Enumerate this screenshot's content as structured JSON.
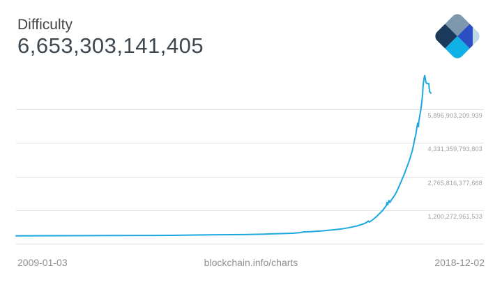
{
  "header": {
    "title": "Difficulty",
    "value": "6,653,303,141,405"
  },
  "footer": {
    "start_date": "2009-01-03",
    "source_link": "blockchain.info/charts",
    "end_date": "2018-12-02"
  },
  "logo": {
    "name": "blockchain-logo",
    "colors": {
      "north_gray": "#7d98ac",
      "west_navy": "#1c3a5c",
      "east_royal": "#2b4fc3",
      "east_tip_light": "#bcd9e8",
      "south_cyan": "#0fb1e7"
    }
  },
  "colors": {
    "line": "#1ba7e0",
    "grid": "#e1e1e1",
    "axis": "#dcdcdc",
    "tick_label": "#9e9e9e",
    "footer_text": "#8f8f8f",
    "title_text": "#424242",
    "value_text": "#3f474e",
    "background": "#ffffff"
  },
  "chart_data": {
    "type": "line",
    "title": "Difficulty",
    "subtitle_current_value": 6653303141405,
    "xlabel": "",
    "ylabel": "Difficulty",
    "x_range": [
      "2009-01-03",
      "2018-12-02"
    ],
    "y_axis_side": "right",
    "grid": true,
    "legend": false,
    "y_ticks": [
      {
        "label": "5,896,903,209,939",
        "value_trillions": 5.896903209939
      },
      {
        "label": "4,331,359,793,803",
        "value_trillions": 4.331359793803
      },
      {
        "label": "2,765,816,377,668",
        "value_trillions": 2.765816377668
      },
      {
        "label": "1,200,272,961,533",
        "value_trillions": 1.200272961533
      }
    ],
    "series": [
      {
        "name": "Difficulty",
        "unit": "trillions",
        "points": [
          [
            0.0,
            0.001
          ],
          [
            0.107,
            0.005
          ],
          [
            0.213,
            0.012
          ],
          [
            0.35,
            0.02
          ],
          [
            0.466,
            0.045
          ],
          [
            0.55,
            0.06
          ],
          [
            0.6,
            0.08
          ],
          [
            0.667,
            0.12
          ],
          [
            0.684,
            0.15
          ],
          [
            0.694,
            0.185
          ],
          [
            0.709,
            0.19
          ],
          [
            0.734,
            0.225
          ],
          [
            0.76,
            0.27
          ],
          [
            0.785,
            0.32
          ],
          [
            0.805,
            0.39
          ],
          [
            0.822,
            0.46
          ],
          [
            0.835,
            0.54
          ],
          [
            0.845,
            0.62
          ],
          [
            0.849,
            0.69
          ],
          [
            0.852,
            0.64
          ],
          [
            0.861,
            0.77
          ],
          [
            0.869,
            0.9
          ],
          [
            0.877,
            1.05
          ],
          [
            0.884,
            1.19
          ],
          [
            0.889,
            1.32
          ],
          [
            0.893,
            1.42
          ],
          [
            0.894,
            1.55
          ],
          [
            0.896,
            1.45
          ],
          [
            0.899,
            1.65
          ],
          [
            0.901,
            1.55
          ],
          [
            0.906,
            1.71
          ],
          [
            0.911,
            1.84
          ],
          [
            0.916,
            2.0
          ],
          [
            0.921,
            2.2
          ],
          [
            0.926,
            2.43
          ],
          [
            0.931,
            2.65
          ],
          [
            0.936,
            2.88
          ],
          [
            0.941,
            3.14
          ],
          [
            0.946,
            3.4
          ],
          [
            0.951,
            3.69
          ],
          [
            0.955,
            3.95
          ],
          [
            0.958,
            4.21
          ],
          [
            0.961,
            4.5
          ],
          [
            0.964,
            4.76
          ],
          [
            0.966,
            5.02
          ],
          [
            0.968,
            5.25
          ],
          [
            0.97,
            5.09
          ],
          [
            0.971,
            5.31
          ],
          [
            0.973,
            5.57
          ],
          [
            0.976,
            5.9
          ],
          [
            0.978,
            6.22
          ],
          [
            0.98,
            6.58
          ],
          [
            0.981,
            6.94
          ],
          [
            0.983,
            7.29
          ],
          [
            0.984,
            7.39
          ],
          [
            0.985,
            7.47
          ],
          [
            0.986,
            7.38
          ],
          [
            0.988,
            7.16
          ],
          [
            0.99,
            7.1
          ],
          [
            0.995,
            7.1
          ],
          [
            0.996,
            6.87
          ],
          [
            0.997,
            6.72
          ],
          [
            1.0,
            6.653
          ]
        ]
      }
    ]
  }
}
